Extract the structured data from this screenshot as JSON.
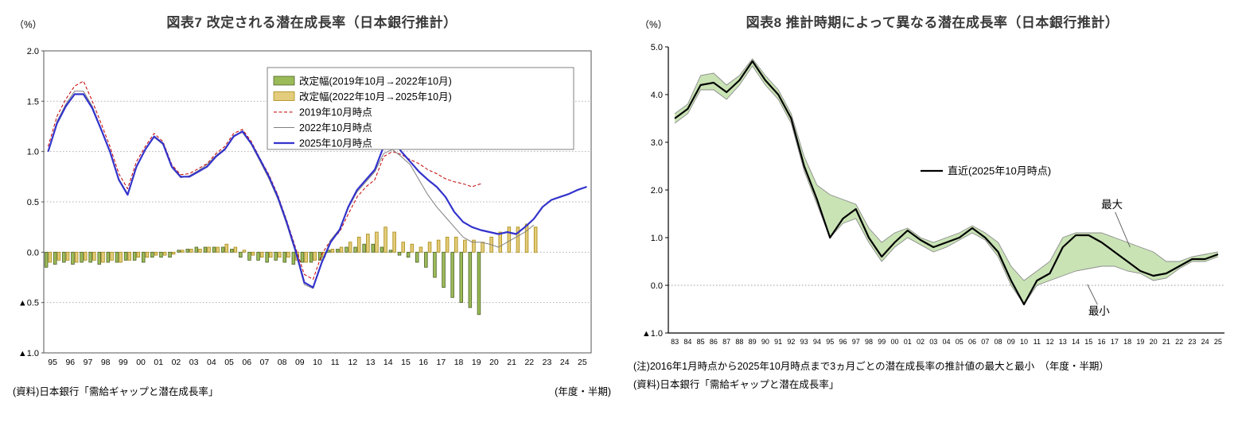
{
  "chart_data": [
    {
      "type": "bar+line",
      "title": "図表7 改定される潜在成長率（日本銀行推計）",
      "y_unit": "（%）",
      "x_axis_note": "(年度・半期)",
      "source": "(資料)日本銀行「需給ギャップと潜在成長率」",
      "ylim": [
        -1.0,
        2.0
      ],
      "yticks": [
        2.0,
        1.5,
        1.0,
        0.5,
        0.0,
        -0.5,
        -1.0
      ],
      "ytick_labels": [
        "2.0",
        "1.5",
        "1.0",
        "0.5",
        "0.0",
        "▲0.5",
        "▲1.0"
      ],
      "x_frequency": "half-year",
      "x_labels": [
        "95",
        "96",
        "97",
        "98",
        "99",
        "00",
        "01",
        "02",
        "03",
        "04",
        "05",
        "06",
        "07",
        "08",
        "09",
        "10",
        "11",
        "12",
        "13",
        "14",
        "15",
        "16",
        "17",
        "18",
        "19",
        "20",
        "21",
        "22",
        "23",
        "24",
        "25"
      ],
      "bar_series": [
        {
          "name": "改定幅(2019年10月→2022年10月)",
          "fill": "#9bbb59",
          "border": "#4f6228",
          "values": [
            -0.15,
            -0.12,
            -0.1,
            -0.12,
            -0.1,
            -0.1,
            -0.12,
            -0.1,
            -0.1,
            -0.08,
            -0.08,
            -0.1,
            -0.05,
            -0.05,
            -0.05,
            0.02,
            0.03,
            0.05,
            0.05,
            0.05,
            0.05,
            0.03,
            -0.05,
            -0.08,
            -0.08,
            -0.1,
            -0.08,
            -0.1,
            -0.12,
            -0.1,
            -0.1,
            -0.08,
            0.02,
            0.03,
            0.05,
            0.05,
            0.08,
            0.08,
            0.05,
            0.02,
            -0.03,
            -0.05,
            -0.1,
            -0.15,
            -0.25,
            -0.35,
            -0.45,
            -0.5,
            -0.55,
            -0.62
          ]
        },
        {
          "name": "改定幅(2022年10月→2025年10月)",
          "fill": "#e3cc7b",
          "border": "#a98a12",
          "values": [
            -0.1,
            -0.08,
            -0.08,
            -0.1,
            -0.08,
            -0.08,
            -0.1,
            -0.08,
            -0.1,
            -0.08,
            -0.05,
            -0.05,
            -0.03,
            -0.03,
            -0.02,
            0.02,
            0.03,
            0.03,
            0.05,
            0.05,
            0.08,
            0.05,
            0.02,
            -0.03,
            -0.05,
            -0.05,
            -0.05,
            -0.05,
            -0.08,
            -0.1,
            -0.08,
            -0.05,
            0.03,
            0.05,
            0.1,
            0.15,
            0.18,
            0.2,
            0.25,
            0.2,
            0.1,
            0.08,
            0.05,
            0.1,
            0.12,
            0.15,
            0.15,
            0.12,
            0.12,
            0.1,
            0.15,
            0.2,
            0.25,
            0.25,
            0.28,
            0.25
          ]
        }
      ],
      "line_series": [
        {
          "name": "2019年10月時点",
          "color": "#c00000",
          "dash": "4 2.5",
          "width": 1,
          "values": [
            1.05,
            1.35,
            1.52,
            1.65,
            1.7,
            1.5,
            1.28,
            1.05,
            0.78,
            0.63,
            0.9,
            1.05,
            1.18,
            1.1,
            0.87,
            0.77,
            0.78,
            0.83,
            0.88,
            0.98,
            1.05,
            1.18,
            1.22,
            1.1,
            0.93,
            0.77,
            0.57,
            0.32,
            0.05,
            -0.22,
            -0.27,
            -0.02,
            0.12,
            0.2,
            0.38,
            0.55,
            0.65,
            0.72,
            0.95,
            1.0,
            0.97,
            0.92,
            0.88,
            0.82,
            0.78,
            0.73,
            0.7,
            0.68,
            0.65,
            0.68
          ]
        },
        {
          "name": "2022年10月時点",
          "color": "#808080",
          "dash": "",
          "width": 1,
          "values": [
            1.0,
            1.3,
            1.47,
            1.6,
            1.6,
            1.45,
            1.23,
            1.0,
            0.73,
            0.58,
            0.86,
            1.02,
            1.14,
            1.07,
            0.84,
            0.74,
            0.76,
            0.81,
            0.87,
            0.96,
            1.03,
            1.16,
            1.19,
            1.07,
            0.9,
            0.73,
            0.53,
            0.28,
            0.0,
            -0.32,
            -0.36,
            -0.1,
            0.12,
            0.23,
            0.44,
            0.6,
            0.7,
            0.8,
            0.98,
            1.02,
            0.95,
            0.87,
            0.72,
            0.57,
            0.45,
            0.35,
            0.25,
            0.15,
            0.1,
            0.1,
            0.08,
            0.05,
            0.1,
            0.15,
            0.2,
            0.27
          ]
        },
        {
          "name": "2025年10月時点",
          "color": "#3333cc",
          "dash": "",
          "width": 2.2,
          "values": [
            1.0,
            1.28,
            1.45,
            1.57,
            1.57,
            1.43,
            1.22,
            1.0,
            0.72,
            0.57,
            0.85,
            1.02,
            1.15,
            1.08,
            0.85,
            0.75,
            0.75,
            0.8,
            0.85,
            0.95,
            1.02,
            1.15,
            1.2,
            1.08,
            0.92,
            0.75,
            0.55,
            0.3,
            0.02,
            -0.3,
            -0.35,
            -0.1,
            0.1,
            0.22,
            0.45,
            0.62,
            0.72,
            0.82,
            1.05,
            1.12,
            1.0,
            0.9,
            0.8,
            0.72,
            0.65,
            0.55,
            0.4,
            0.3,
            0.25,
            0.22,
            0.2,
            0.18,
            0.2,
            0.18,
            0.25,
            0.33,
            0.45,
            0.52,
            0.55,
            0.58,
            0.62,
            0.65
          ]
        }
      ]
    },
    {
      "type": "line+band",
      "title": "図表8 推計時期によって異なる潜在成長率（日本銀行推計）",
      "y_unit": "（%）",
      "note": "(注)2016年1月時点から2025年10月時点まで3ヵ月ごとの潜在成長率の推計値の最大と最小　（年度・半期）",
      "source": "(資料)日本銀行「需給ギャップと潜在成長率」",
      "ylim": [
        -1.0,
        5.0
      ],
      "yticks": [
        5.0,
        4.0,
        3.0,
        2.0,
        1.0,
        0.0,
        -1.0
      ],
      "ytick_labels": [
        "5.0",
        "4.0",
        "3.0",
        "2.0",
        "1.0",
        "0.0",
        "▲1.0"
      ],
      "x_labels": [
        "83",
        "84",
        "85",
        "86",
        "87",
        "88",
        "89",
        "90",
        "91",
        "92",
        "93",
        "94",
        "95",
        "96",
        "97",
        "98",
        "99",
        "00",
        "01",
        "02",
        "03",
        "04",
        "05",
        "06",
        "07",
        "08",
        "09",
        "10",
        "11",
        "12",
        "13",
        "14",
        "15",
        "16",
        "17",
        "18",
        "19",
        "20",
        "21",
        "22",
        "23",
        "24",
        "25"
      ],
      "line": {
        "name": "直近(2025年10月時点)",
        "color": "#000000",
        "values": [
          3.5,
          3.7,
          4.2,
          4.25,
          4.05,
          4.3,
          4.7,
          4.3,
          4.0,
          3.5,
          2.5,
          1.8,
          1.0,
          1.4,
          1.6,
          1.0,
          0.6,
          0.9,
          1.15,
          0.95,
          0.8,
          0.9,
          1.0,
          1.2,
          1.0,
          0.7,
          0.1,
          -0.4,
          0.1,
          0.25,
          0.8,
          1.05,
          1.05,
          0.9,
          0.7,
          0.5,
          0.3,
          0.2,
          0.25,
          0.4,
          0.55,
          0.55,
          0.65
        ]
      },
      "band": {
        "fill": "#c9e3b5",
        "edge": "#8c8c8c",
        "max": [
          3.6,
          3.8,
          4.4,
          4.45,
          4.2,
          4.4,
          4.75,
          4.4,
          4.1,
          3.6,
          2.7,
          2.1,
          1.9,
          1.8,
          1.7,
          1.2,
          0.9,
          1.1,
          1.2,
          1.0,
          0.9,
          1.0,
          1.1,
          1.25,
          1.1,
          0.9,
          0.4,
          0.1,
          0.3,
          0.5,
          1.0,
          1.1,
          1.1,
          1.1,
          1.0,
          0.9,
          0.8,
          0.7,
          0.5,
          0.5,
          0.6,
          0.65,
          0.7
        ],
        "min": [
          3.4,
          3.6,
          4.1,
          4.1,
          3.9,
          4.2,
          4.6,
          4.2,
          3.9,
          3.4,
          2.4,
          1.7,
          1.0,
          1.3,
          1.4,
          0.9,
          0.5,
          0.8,
          1.0,
          0.85,
          0.7,
          0.8,
          0.95,
          1.1,
          0.95,
          0.6,
          0.0,
          -0.4,
          0.0,
          0.1,
          0.2,
          0.3,
          0.35,
          0.4,
          0.4,
          0.3,
          0.25,
          0.1,
          0.15,
          0.35,
          0.5,
          0.5,
          0.6
        ]
      },
      "legend_pos": {
        "xi": 19.0,
        "y": 2.4
      },
      "annotations": [
        {
          "text": "最大",
          "xi": 33.8,
          "y": 1.62,
          "tip_xi": 35.2,
          "tip_y": 0.8
        },
        {
          "text": "最小",
          "xi": 32.8,
          "y": -0.62,
          "tip_xi": 31.9,
          "tip_y": 0.02
        }
      ]
    }
  ]
}
